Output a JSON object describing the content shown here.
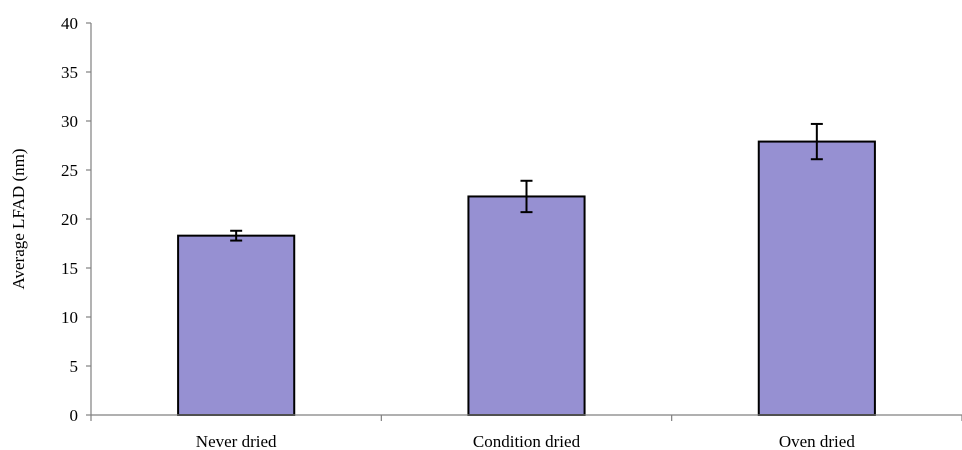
{
  "chart_data": {
    "type": "bar",
    "title": "",
    "xlabel": "",
    "ylabel": "Average LFAD (nm)",
    "ylim": [
      0,
      40
    ],
    "yticks": [
      0,
      5,
      10,
      15,
      20,
      25,
      30,
      35,
      40
    ],
    "categories": [
      "Never dried",
      "Condition dried",
      "Oven dried"
    ],
    "values": [
      18.3,
      22.3,
      27.9
    ],
    "errors": [
      0.5,
      1.6,
      1.8
    ],
    "grid": false,
    "legend": "none",
    "colors": {
      "bar_fill": "#9690D2",
      "bar_stroke": "#000000",
      "axis": "#808080",
      "error_bar": "#000000"
    }
  }
}
